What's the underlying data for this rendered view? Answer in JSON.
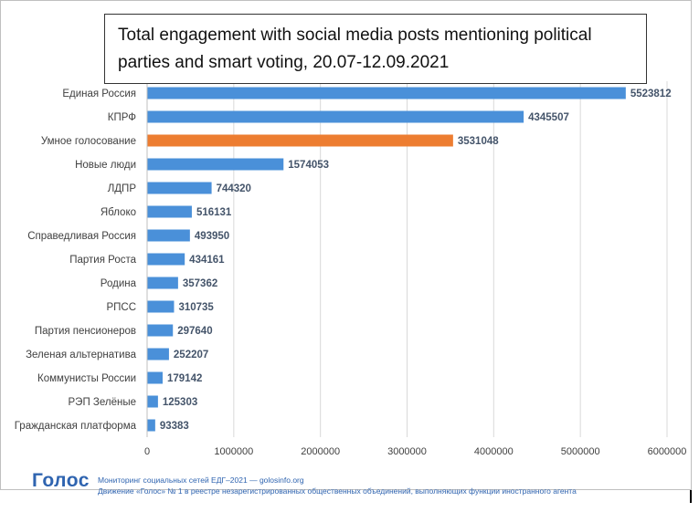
{
  "chart_data": {
    "type": "bar",
    "orientation": "horizontal",
    "title": "Total engagement with social media posts mentioning political parties and smart voting, 20.07-12.09.2021",
    "categories": [
      "Единая Россия",
      "КПРФ",
      "Умное голосование",
      "Новые люди",
      "ЛДПР",
      "Яблоко",
      "Справедливая Россия",
      "Партия Роста",
      "Родина",
      "РПСС",
      "Партия пенсионеров",
      "Зеленая альтернатива",
      "Коммунисты России",
      "РЭП Зелёные",
      "Гражданская платформа"
    ],
    "values": [
      5523812,
      4345507,
      3531048,
      1574053,
      744320,
      516131,
      493950,
      434161,
      357362,
      310735,
      297640,
      252207,
      179142,
      125303,
      93383
    ],
    "highlight_index": 2,
    "colors": {
      "bar": "#4a90d9",
      "highlight": "#ed7d31",
      "grid": "#d9d9d9",
      "label": "#404040",
      "value_label": "#44546a"
    },
    "xlim": [
      0,
      6000000
    ],
    "xticks": [
      0,
      1000000,
      2000000,
      3000000,
      4000000,
      5000000,
      6000000
    ],
    "xtick_labels": [
      "0",
      "1000000",
      "2000000",
      "3000000",
      "4000000",
      "5000000",
      "6000000"
    ],
    "grid": "vertical"
  },
  "footer": {
    "logo_text": "Голос",
    "line1": "Мониторинг социальных сетей ЕДГ–2021 — golosinfo.org",
    "line2": "Движение «Голос» № 1 в реестре незарегистрированных общественных объединений, выполняющих функции иностранного агента"
  }
}
